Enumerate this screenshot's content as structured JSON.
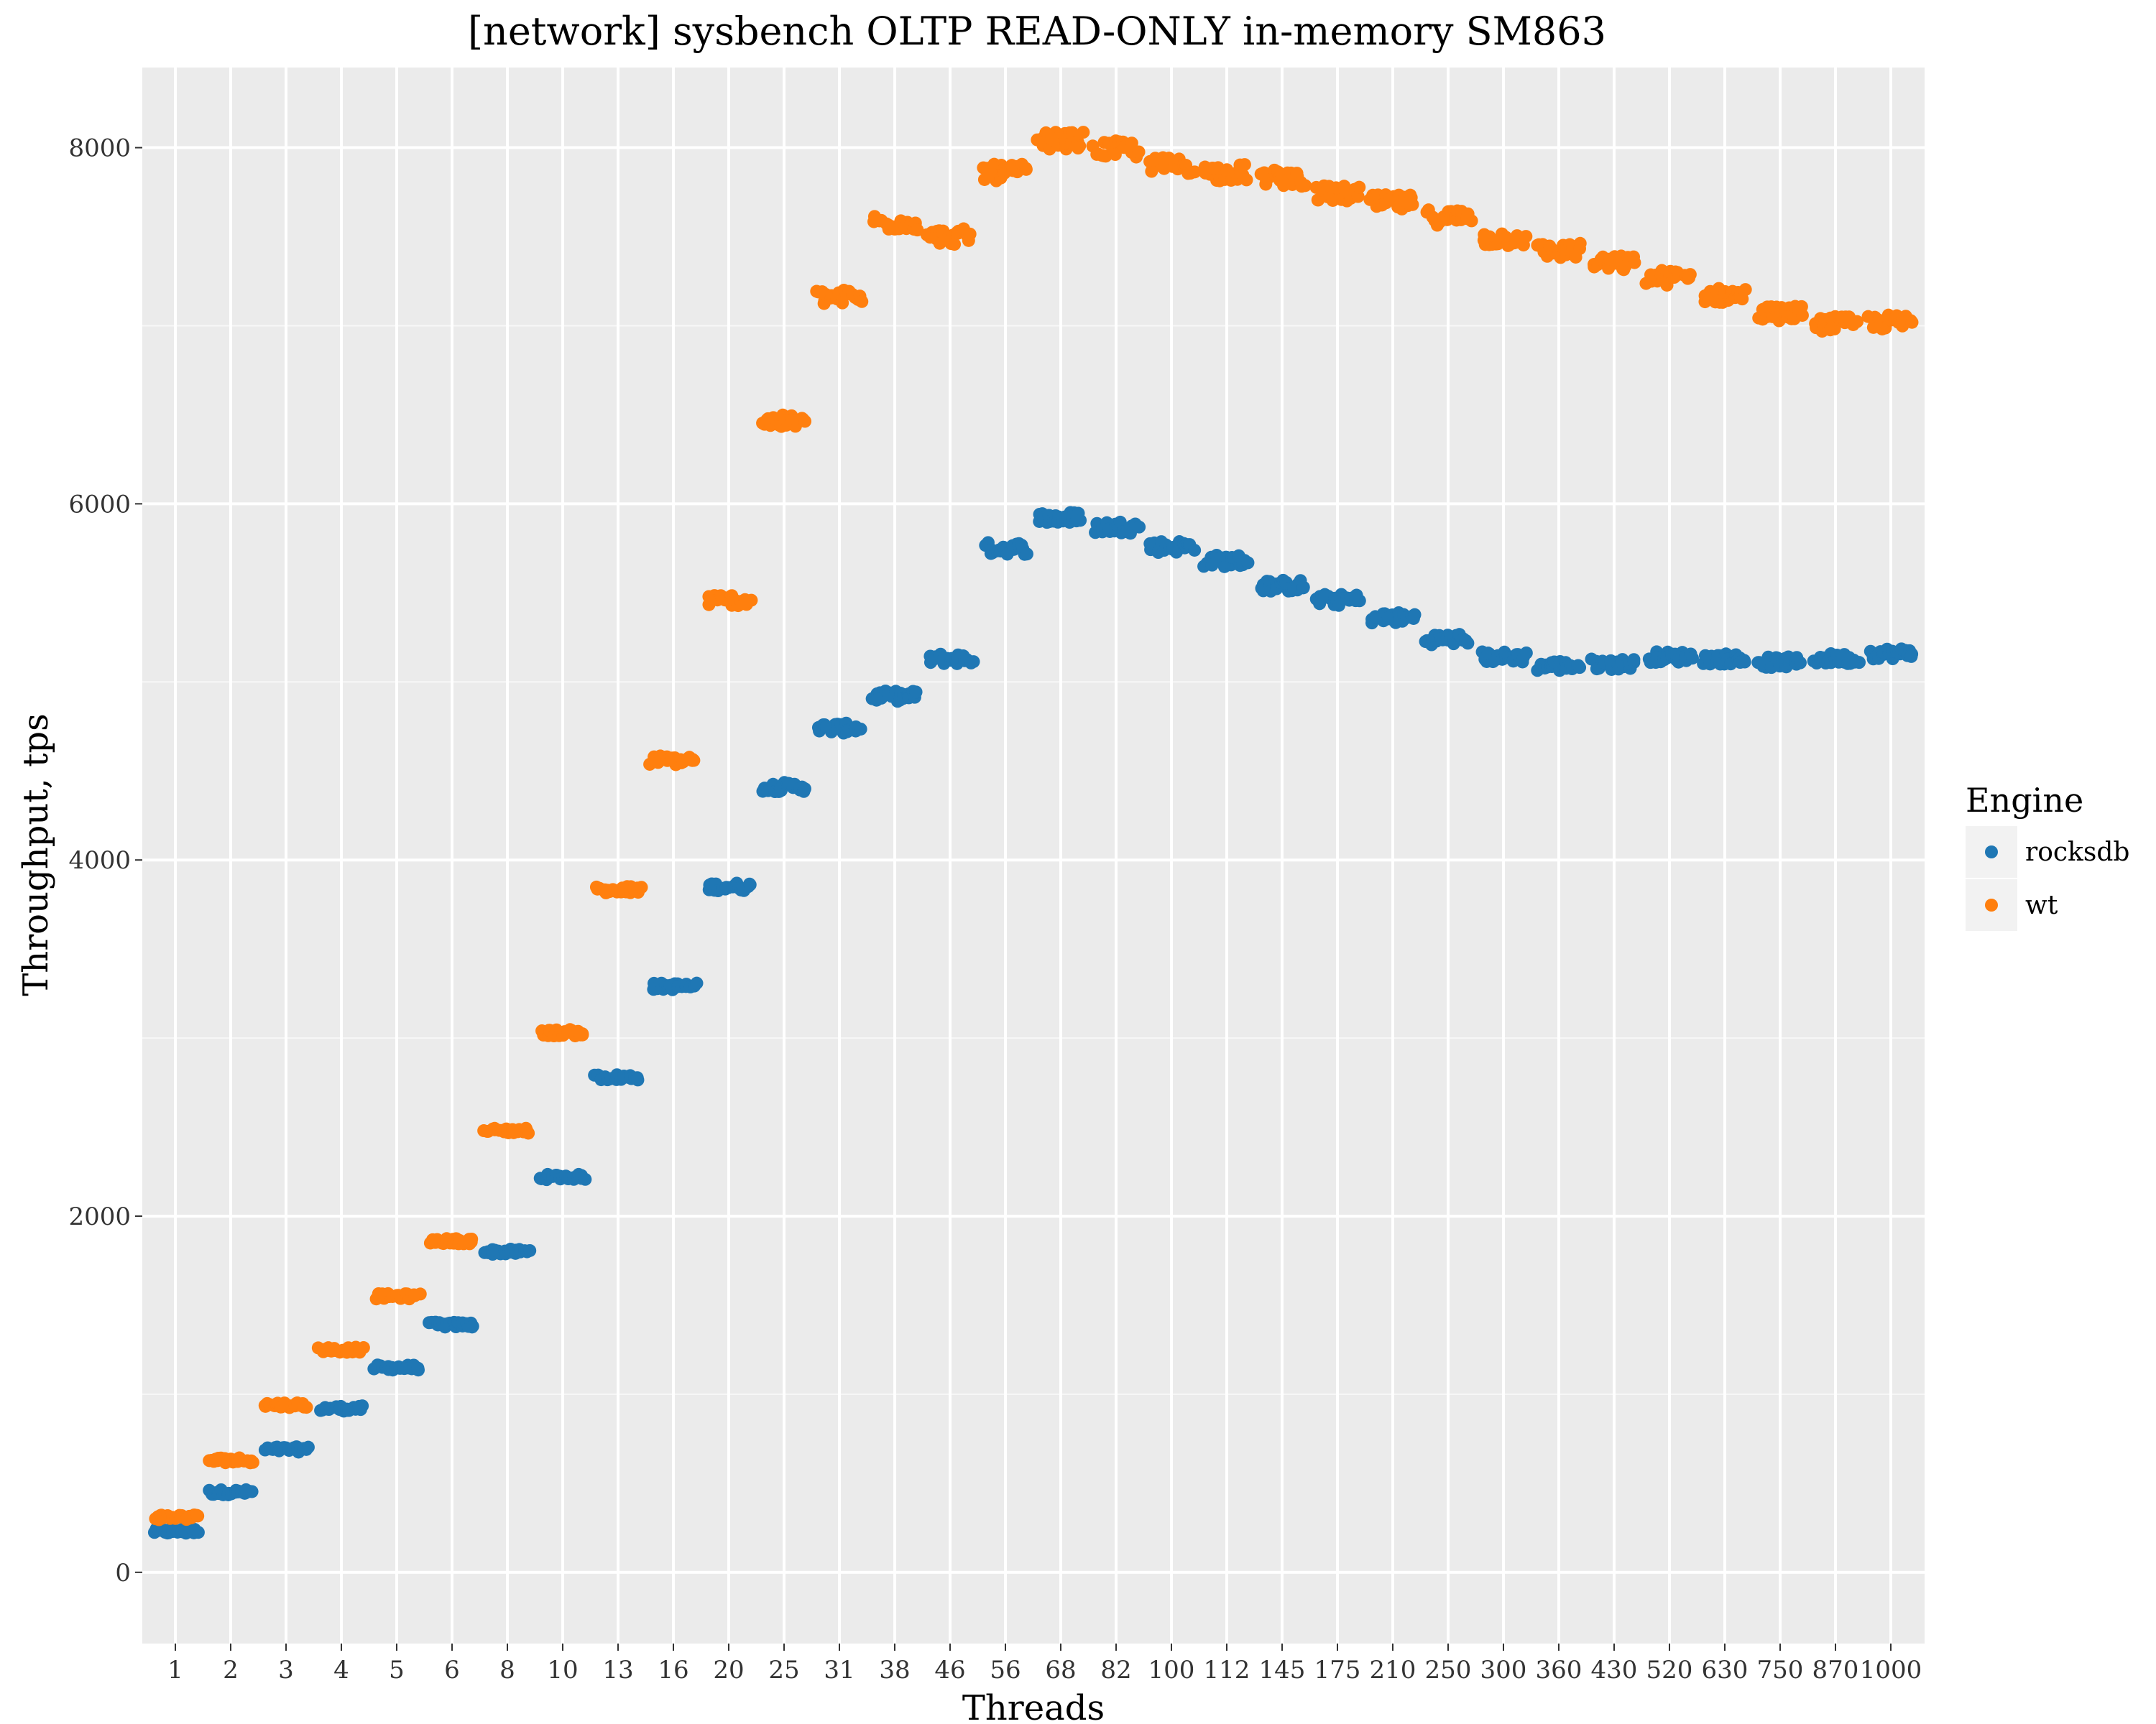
{
  "chart_data": {
    "type": "scatter",
    "title": "[network] sysbench OLTP READ-ONLY in-memory SM863",
    "xlabel": "Threads",
    "ylabel": "Throughput, tps",
    "categories": [
      "1",
      "2",
      "3",
      "4",
      "5",
      "6",
      "8",
      "10",
      "13",
      "16",
      "20",
      "25",
      "31",
      "38",
      "46",
      "56",
      "68",
      "82",
      "100",
      "112",
      "145",
      "175",
      "210",
      "250",
      "300",
      "360",
      "430",
      "520",
      "630",
      "750",
      "870",
      "1000"
    ],
    "y_ticks": [
      0,
      2000,
      4000,
      6000,
      8000
    ],
    "y_tick_labels": [
      "0",
      "2000",
      "4000",
      "6000",
      "8000"
    ],
    "ylim": [
      -400,
      8450
    ],
    "grid": true,
    "legend": {
      "title": "Engine",
      "position": "right"
    },
    "series": [
      {
        "name": "rocksdb",
        "color": "#1f77b4",
        "values": [
          230,
          450,
          690,
          920,
          1150,
          1390,
          1800,
          2220,
          2780,
          3290,
          3850,
          4410,
          4740,
          4920,
          5130,
          5750,
          5920,
          5870,
          5760,
          5680,
          5540,
          5460,
          5360,
          5240,
          5140,
          5090,
          5100,
          5140,
          5130,
          5110,
          5130,
          5160
        ]
      },
      {
        "name": "wt",
        "color": "#ff7f0e",
        "values": [
          310,
          630,
          940,
          1250,
          1550,
          1860,
          2480,
          3030,
          3830,
          4560,
          5460,
          6460,
          7160,
          7580,
          7500,
          7860,
          8040,
          7990,
          7900,
          7860,
          7830,
          7740,
          7690,
          7610,
          7490,
          7420,
          7350,
          7270,
          7170,
          7070,
          7010,
          7020
        ]
      }
    ]
  }
}
